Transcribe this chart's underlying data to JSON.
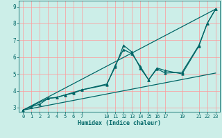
{
  "xlabel": "Humidex (Indice chaleur)",
  "bg_color": "#cceee8",
  "grid_color": "#ff9999",
  "line_color": "#006666",
  "xlim": [
    -0.5,
    23.5
  ],
  "ylim": [
    2.75,
    9.35
  ],
  "xticks": [
    0,
    1,
    2,
    3,
    4,
    5,
    6,
    7,
    10,
    11,
    12,
    13,
    14,
    15,
    16,
    17,
    19,
    21,
    22,
    23
  ],
  "yticks": [
    3,
    4,
    5,
    6,
    7,
    8,
    9
  ],
  "series": [
    {
      "x": [
        0,
        1,
        2,
        3,
        4,
        5,
        6,
        7,
        10,
        11,
        12,
        13,
        14,
        15,
        16,
        17,
        19,
        21,
        22,
        23
      ],
      "y": [
        2.85,
        3.05,
        3.2,
        3.55,
        3.6,
        3.75,
        3.85,
        4.05,
        4.4,
        5.4,
        6.7,
        6.3,
        5.35,
        4.65,
        5.3,
        5.05,
        5.1,
        6.7,
        8.0,
        8.85
      ],
      "markers": true
    },
    {
      "x": [
        0,
        3,
        4,
        5,
        6,
        7,
        10,
        11,
        12,
        13,
        14,
        15,
        16,
        17,
        19,
        21,
        22,
        23
      ],
      "y": [
        2.85,
        3.55,
        3.6,
        3.75,
        3.9,
        4.05,
        4.35,
        5.5,
        6.45,
        6.2,
        5.45,
        4.65,
        5.35,
        5.2,
        5.0,
        6.65,
        8.0,
        8.85
      ],
      "markers": true
    },
    {
      "x": [
        0,
        23
      ],
      "y": [
        2.85,
        8.85
      ],
      "markers": false
    },
    {
      "x": [
        0,
        23
      ],
      "y": [
        2.85,
        5.05
      ],
      "markers": false
    }
  ]
}
